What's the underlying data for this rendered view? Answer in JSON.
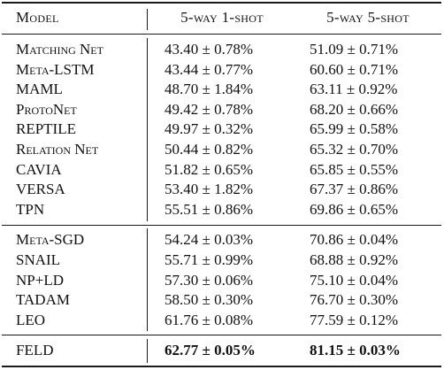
{
  "header": {
    "model": "Model",
    "one_shot": "5-way 1-shot",
    "five_shot": "5-way 5-shot"
  },
  "group1": [
    {
      "model": "Matching Net",
      "one": "43.40 ± 0.78%",
      "five": "51.09 ± 0.71%",
      "smallcaps": true
    },
    {
      "model": "Meta-LSTM",
      "one": "43.44 ± 0.77%",
      "five": "60.60 ± 0.71%",
      "smallcaps": true
    },
    {
      "model": "MAML",
      "one": "48.70 ± 1.84%",
      "five": "63.11 ± 0.92%",
      "smallcaps": false
    },
    {
      "model": "ProtoNet",
      "one": "49.42 ± 0.78%",
      "five": "68.20 ± 0.66%",
      "smallcaps": true
    },
    {
      "model": "REPTILE",
      "one": "49.97 ± 0.32%",
      "five": "65.99 ± 0.58%",
      "smallcaps": false
    },
    {
      "model": "Relation Net",
      "one": "50.44 ± 0.82%",
      "five": "65.32 ± 0.70%",
      "smallcaps": true
    },
    {
      "model": "CAVIA",
      "one": "51.82 ± 0.65%",
      "five": "65.85 ± 0.55%",
      "smallcaps": false
    },
    {
      "model": "VERSA",
      "one": "53.40 ± 1.82%",
      "five": "67.37 ± 0.86%",
      "smallcaps": false
    },
    {
      "model": "TPN",
      "one": "55.51 ± 0.86%",
      "five": "69.86 ± 0.65%",
      "smallcaps": false
    }
  ],
  "group2": [
    {
      "model": "Meta-SGD",
      "one": "54.24 ± 0.03%",
      "five": "70.86 ± 0.04%",
      "smallcaps": true
    },
    {
      "model": "SNAIL",
      "one": "55.71 ± 0.99%",
      "five": "68.88 ± 0.92%",
      "smallcaps": false
    },
    {
      "model": "NP+LD",
      "one": "57.30 ± 0.06%",
      "five": "75.10 ± 0.04%",
      "smallcaps": false
    },
    {
      "model": "TADAM",
      "one": "58.50 ± 0.30%",
      "five": "76.70 ± 0.30%",
      "smallcaps": false
    },
    {
      "model": "LEO",
      "one": "61.76 ± 0.08%",
      "five": "77.59 ± 0.12%",
      "smallcaps": false
    }
  ],
  "ours": {
    "model": "FELD",
    "one": "62.77 ± 0.05%",
    "five": "81.15 ± 0.03%"
  }
}
